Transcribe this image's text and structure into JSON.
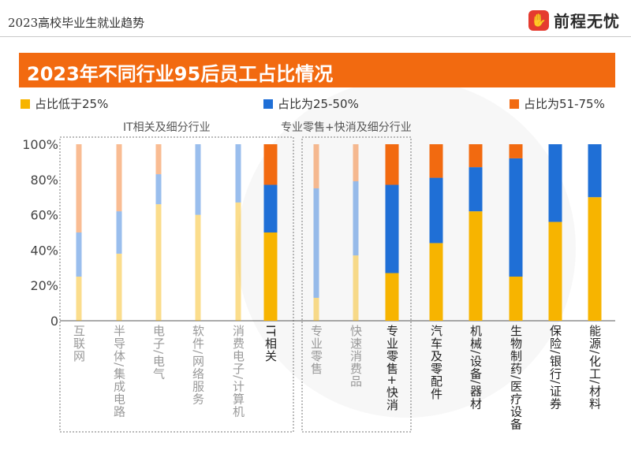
{
  "header": {
    "title": "2023高校毕业生就业趋势",
    "brand": "前程无忧"
  },
  "colors": {
    "accent": "#f26a10",
    "low": "#f7b400",
    "mid": "#1f6fd6",
    "high": "#f26a10"
  },
  "chart_data": {
    "type": "bar",
    "stacked": true,
    "title": "2023年不同行业95后员工占比情况",
    "legend": [
      "占比低于25%",
      "占比为25-50%",
      "占比为51-75%"
    ],
    "legend_placement": "top",
    "yticks": [
      "100%",
      "80%",
      "60%",
      "40%",
      "20%",
      "0"
    ],
    "ylim": [
      0,
      100
    ],
    "groups": [
      {
        "label": "IT相关及细分行业"
      },
      {
        "label": "专业零售+快消及细分行业"
      }
    ],
    "categories": [
      {
        "label": "互联网",
        "values": [
          25,
          25,
          50
        ],
        "faded": true
      },
      {
        "label": "半导体/集成电路",
        "values": [
          38,
          24,
          38
        ],
        "faded": true
      },
      {
        "label": "电子/电气",
        "values": [
          66,
          17,
          17
        ],
        "faded": true
      },
      {
        "label": "软件/网络服务",
        "values": [
          60,
          40,
          0
        ],
        "faded": true
      },
      {
        "label": "消费电子/计算机",
        "values": [
          67,
          33,
          0
        ],
        "faded": true
      },
      {
        "label": "IT相关",
        "values": [
          50,
          27,
          23
        ],
        "faded": false
      },
      {
        "label": "专业零售",
        "values": [
          13,
          62,
          25
        ],
        "faded": true
      },
      {
        "label": "快速消费品",
        "values": [
          37,
          42,
          21
        ],
        "faded": true
      },
      {
        "label": "专业零售+快消",
        "values": [
          27,
          50,
          23
        ],
        "faded": false
      },
      {
        "label": "汽车及零配件",
        "values": [
          44,
          37,
          19
        ],
        "faded": false
      },
      {
        "label": "机械/设备/器材",
        "values": [
          62,
          25,
          13
        ],
        "faded": false
      },
      {
        "label": "生物制药/医疗设备",
        "values": [
          25,
          67,
          8
        ],
        "faded": false
      },
      {
        "label": "保险/银行/证券",
        "values": [
          56,
          44,
          0
        ],
        "faded": false
      },
      {
        "label": "能源/化工/材料",
        "values": [
          70,
          30,
          0
        ],
        "faded": false
      }
    ]
  }
}
